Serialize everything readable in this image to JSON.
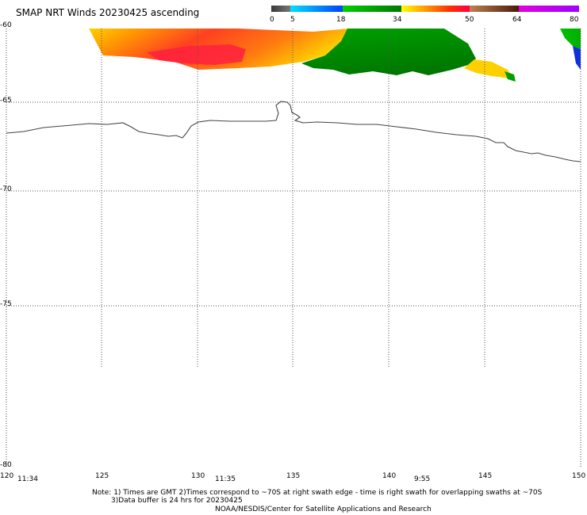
{
  "title": "SMAP NRT Winds 20230425 ascending",
  "colorbar": {
    "tick_labels": [
      "0",
      "5",
      "18",
      "34",
      "50",
      "64",
      "80"
    ],
    "tick_values": [
      0,
      5,
      18,
      34,
      50,
      64,
      80
    ],
    "segments": [
      {
        "from": 0,
        "to": 5,
        "color": "#505050"
      },
      {
        "from": 5,
        "to": 18,
        "color": "#00a0ff"
      },
      {
        "from": 18,
        "to": 34,
        "color": "#00b400"
      },
      {
        "from": 34,
        "to": 50,
        "color": "#ff4000"
      },
      {
        "from": 50,
        "to": 64,
        "color": "#7a3a1a"
      },
      {
        "from": 64,
        "to": 80,
        "color": "#ff00ff"
      }
    ]
  },
  "map": {
    "lat_labels": [
      "-60",
      "-65",
      "-70",
      "-75",
      "-80"
    ],
    "lon_labels": [
      "120",
      "125",
      "130",
      "135",
      "140",
      "145",
      "150"
    ],
    "lat_range": [
      -80,
      -60
    ],
    "lon_range": [
      120,
      150
    ],
    "swath_times": [
      "11:34",
      "11:35",
      "9:55"
    ]
  },
  "notes": {
    "line1": "Note: 1) Times are GMT 2)Times correspond to ~70S at right swath edge - time is right swath for overlapping swaths at ~70S",
    "line2": "3)Data buffer is 24 hrs for 20230425",
    "line3": "NOAA/NESDIS/Center for Satellite Applications and Research"
  },
  "colors": {
    "grid": "#555555",
    "coastline": "#444444"
  }
}
